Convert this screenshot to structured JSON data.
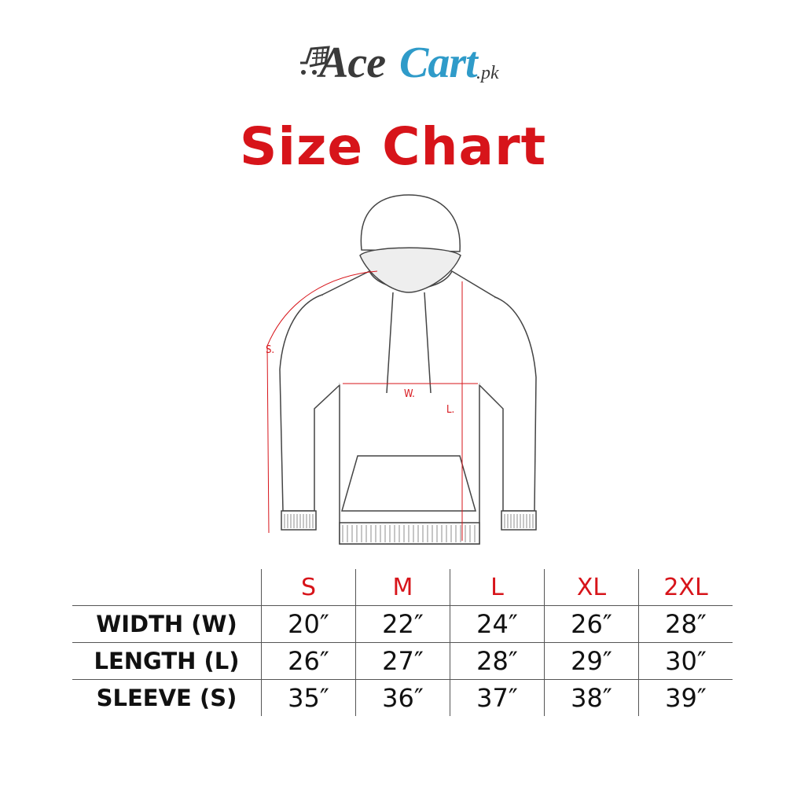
{
  "brand": {
    "part1": "Ace",
    "part2": "Cart",
    "suffix": ".pk",
    "colors": {
      "dark": "#3a3a3a",
      "blue": "#2f9bc9"
    },
    "icon": "shopping-cart-icon"
  },
  "title": "Size Chart",
  "accent_color": "#d7141a",
  "diagram": {
    "sleeve_label": "S.",
    "width_label": "W.",
    "length_label": "L."
  },
  "table": {
    "sizes": [
      "S",
      "M",
      "L",
      "XL",
      "2XL"
    ],
    "rows": [
      {
        "label": "WIDTH (W)",
        "values": [
          "20″",
          "22″",
          "24″",
          "26″",
          "28″"
        ]
      },
      {
        "label": "LENGTH (L)",
        "values": [
          "26″",
          "27″",
          "28″",
          "29″",
          "30″"
        ]
      },
      {
        "label": "SLEEVE (S)",
        "values": [
          "35″",
          "36″",
          "37″",
          "38″",
          "39″"
        ]
      }
    ]
  }
}
